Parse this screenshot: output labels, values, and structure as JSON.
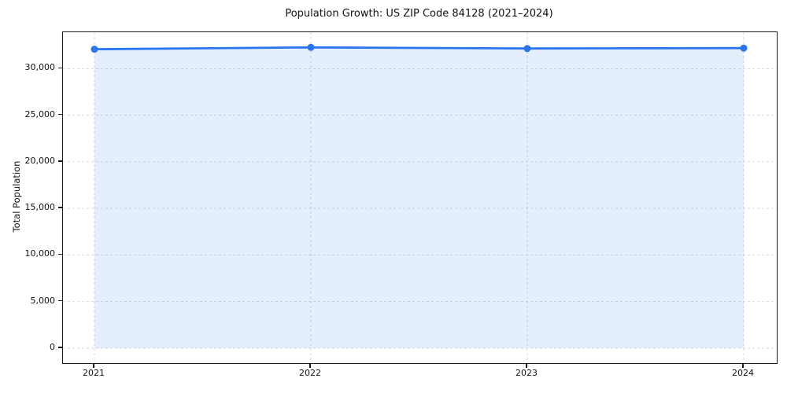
{
  "figure": {
    "background": "#ffffff"
  },
  "chart_data": {
    "type": "line",
    "title": "Population Growth: US ZIP Code 84128 (2021–2024)",
    "xlabel": "",
    "ylabel": "Total Population",
    "x": [
      2021,
      2022,
      2023,
      2024
    ],
    "xticklabels": [
      "2021",
      "2022",
      "2023",
      "2024"
    ],
    "series": [
      {
        "name": "Total Population",
        "values": [
          32090,
          32290,
          32170,
          32210
        ]
      }
    ],
    "yticks": [
      0,
      5000,
      10000,
      15000,
      20000,
      25000,
      30000
    ],
    "ytick_labels": [
      "0",
      "5,000",
      "10,000",
      "15,000",
      "20,000",
      "25,000",
      "30,000"
    ],
    "ylim": [
      -1615,
      33915
    ],
    "grid": true,
    "grid_style": "dashed",
    "legend": "none",
    "line_color": "#2a75f0",
    "marker": "circle",
    "area_fill": true,
    "fill_opacity": 0.12,
    "grid_color": "#d9d9d9",
    "spine_color": "#1a1a1a"
  }
}
